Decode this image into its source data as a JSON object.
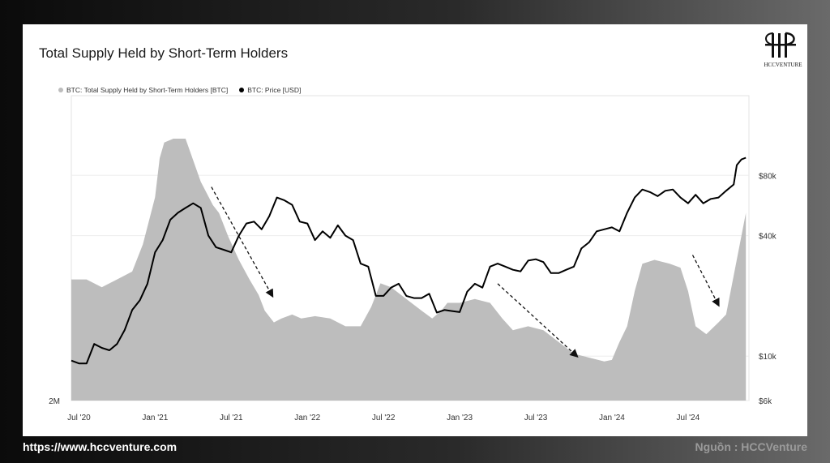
{
  "chart_data": {
    "type": "line",
    "title": "Total Supply Held by Short-Term Holders",
    "legend_position": "top-left",
    "grid": true,
    "series": [
      {
        "name": "BTC: Total Supply Held by Short-Term Holders [BTC]",
        "kind": "area",
        "color": "#bdbdbd",
        "points": [
          [
            2020.45,
            2.55
          ],
          [
            2020.55,
            2.55
          ],
          [
            2020.65,
            2.45
          ],
          [
            2020.75,
            2.55
          ],
          [
            2020.85,
            2.65
          ],
          [
            2020.92,
            3.0
          ],
          [
            2021.0,
            3.6
          ],
          [
            2021.03,
            4.1
          ],
          [
            2021.06,
            4.3
          ],
          [
            2021.12,
            4.35
          ],
          [
            2021.2,
            4.35
          ],
          [
            2021.3,
            3.8
          ],
          [
            2021.38,
            3.5
          ],
          [
            2021.42,
            3.4
          ],
          [
            2021.48,
            3.1
          ],
          [
            2021.55,
            2.8
          ],
          [
            2021.62,
            2.55
          ],
          [
            2021.68,
            2.35
          ],
          [
            2021.72,
            2.15
          ],
          [
            2021.78,
            2.0
          ],
          [
            2021.83,
            2.05
          ],
          [
            2021.9,
            2.1
          ],
          [
            2021.96,
            2.05
          ],
          [
            2022.05,
            2.08
          ],
          [
            2022.15,
            2.05
          ],
          [
            2022.25,
            1.95
          ],
          [
            2022.35,
            1.95
          ],
          [
            2022.42,
            2.2
          ],
          [
            2022.48,
            2.5
          ],
          [
            2022.55,
            2.45
          ],
          [
            2022.65,
            2.3
          ],
          [
            2022.75,
            2.15
          ],
          [
            2022.82,
            2.05
          ],
          [
            2022.88,
            2.15
          ],
          [
            2022.92,
            2.25
          ],
          [
            2023.0,
            2.25
          ],
          [
            2023.1,
            2.3
          ],
          [
            2023.2,
            2.25
          ],
          [
            2023.28,
            2.05
          ],
          [
            2023.35,
            1.9
          ],
          [
            2023.45,
            1.95
          ],
          [
            2023.55,
            1.9
          ],
          [
            2023.65,
            1.75
          ],
          [
            2023.75,
            1.6
          ],
          [
            2023.85,
            1.55
          ],
          [
            2023.95,
            1.5
          ],
          [
            2024.0,
            1.52
          ],
          [
            2024.05,
            1.75
          ],
          [
            2024.1,
            1.95
          ],
          [
            2024.15,
            2.4
          ],
          [
            2024.2,
            2.75
          ],
          [
            2024.28,
            2.8
          ],
          [
            2024.38,
            2.75
          ],
          [
            2024.45,
            2.7
          ],
          [
            2024.5,
            2.4
          ],
          [
            2024.55,
            1.95
          ],
          [
            2024.62,
            1.85
          ],
          [
            2024.7,
            2.0
          ],
          [
            2024.75,
            2.1
          ],
          [
            2024.8,
            2.6
          ],
          [
            2024.85,
            3.1
          ],
          [
            2024.88,
            3.4
          ]
        ]
      },
      {
        "name": "BTC: Price [USD]",
        "kind": "line",
        "color": "#000000",
        "points": [
          [
            2020.45,
            9500
          ],
          [
            2020.5,
            9200
          ],
          [
            2020.55,
            9200
          ],
          [
            2020.6,
            11500
          ],
          [
            2020.65,
            11000
          ],
          [
            2020.7,
            10700
          ],
          [
            2020.75,
            11500
          ],
          [
            2020.8,
            13500
          ],
          [
            2020.85,
            17000
          ],
          [
            2020.9,
            19000
          ],
          [
            2020.95,
            23000
          ],
          [
            2021.0,
            33000
          ],
          [
            2021.05,
            38000
          ],
          [
            2021.1,
            48000
          ],
          [
            2021.15,
            52000
          ],
          [
            2021.2,
            55000
          ],
          [
            2021.25,
            58000
          ],
          [
            2021.3,
            55000
          ],
          [
            2021.35,
            40000
          ],
          [
            2021.4,
            35000
          ],
          [
            2021.45,
            34000
          ],
          [
            2021.5,
            33000
          ],
          [
            2021.55,
            40000
          ],
          [
            2021.6,
            46000
          ],
          [
            2021.65,
            47000
          ],
          [
            2021.7,
            43000
          ],
          [
            2021.75,
            50000
          ],
          [
            2021.8,
            62000
          ],
          [
            2021.85,
            60000
          ],
          [
            2021.9,
            57000
          ],
          [
            2021.95,
            47000
          ],
          [
            2022.0,
            46000
          ],
          [
            2022.05,
            38000
          ],
          [
            2022.1,
            42000
          ],
          [
            2022.15,
            39000
          ],
          [
            2022.2,
            45000
          ],
          [
            2022.25,
            40000
          ],
          [
            2022.3,
            38000
          ],
          [
            2022.35,
            29000
          ],
          [
            2022.4,
            28000
          ],
          [
            2022.45,
            20000
          ],
          [
            2022.5,
            20000
          ],
          [
            2022.55,
            22000
          ],
          [
            2022.6,
            23000
          ],
          [
            2022.65,
            20000
          ],
          [
            2022.7,
            19500
          ],
          [
            2022.75,
            19500
          ],
          [
            2022.8,
            20500
          ],
          [
            2022.85,
            16500
          ],
          [
            2022.9,
            17000
          ],
          [
            2022.95,
            16800
          ],
          [
            2023.0,
            16600
          ],
          [
            2023.05,
            21000
          ],
          [
            2023.1,
            23000
          ],
          [
            2023.15,
            22000
          ],
          [
            2023.2,
            28000
          ],
          [
            2023.25,
            29000
          ],
          [
            2023.3,
            28000
          ],
          [
            2023.35,
            27000
          ],
          [
            2023.4,
            26500
          ],
          [
            2023.45,
            30000
          ],
          [
            2023.5,
            30500
          ],
          [
            2023.55,
            29500
          ],
          [
            2023.6,
            26000
          ],
          [
            2023.65,
            26000
          ],
          [
            2023.7,
            27000
          ],
          [
            2023.75,
            28000
          ],
          [
            2023.8,
            34500
          ],
          [
            2023.85,
            37000
          ],
          [
            2023.9,
            42000
          ],
          [
            2023.95,
            43000
          ],
          [
            2024.0,
            44000
          ],
          [
            2024.05,
            42000
          ],
          [
            2024.1,
            52000
          ],
          [
            2024.15,
            62000
          ],
          [
            2024.2,
            68000
          ],
          [
            2024.25,
            66000
          ],
          [
            2024.3,
            63000
          ],
          [
            2024.35,
            67000
          ],
          [
            2024.4,
            68000
          ],
          [
            2024.45,
            62000
          ],
          [
            2024.5,
            58000
          ],
          [
            2024.55,
            64000
          ],
          [
            2024.6,
            58000
          ],
          [
            2024.65,
            61000
          ],
          [
            2024.7,
            62000
          ],
          [
            2024.75,
            67000
          ],
          [
            2024.8,
            72000
          ],
          [
            2024.82,
            90000
          ],
          [
            2024.85,
            96000
          ],
          [
            2024.88,
            98000
          ]
        ]
      }
    ],
    "x_ticks": [
      {
        "value": 2020.5,
        "label": "Jul '20"
      },
      {
        "value": 2021.0,
        "label": "Jan '21"
      },
      {
        "value": 2021.5,
        "label": "Jul '21"
      },
      {
        "value": 2022.0,
        "label": "Jan '22"
      },
      {
        "value": 2022.5,
        "label": "Jul '22"
      },
      {
        "value": 2023.0,
        "label": "Jan '23"
      },
      {
        "value": 2023.5,
        "label": "Jul '23"
      },
      {
        "value": 2024.0,
        "label": "Jan '24"
      },
      {
        "value": 2024.5,
        "label": "Jul '24"
      }
    ],
    "xlim": [
      2020.45,
      2024.9
    ],
    "left_axis": {
      "ylim": [
        1.0,
        4.9
      ],
      "ticks": [
        {
          "value": 1.0,
          "label": "2M"
        }
      ]
    },
    "right_axis": {
      "scale": "log",
      "ylim": [
        6000,
        200000
      ],
      "ticks": [
        {
          "value": 6000,
          "label": "$6k"
        },
        {
          "value": 10000,
          "label": "$10k"
        },
        {
          "value": 40000,
          "label": "$40k"
        },
        {
          "value": 80000,
          "label": "$80k"
        }
      ]
    },
    "arrows": [
      {
        "from": [
          2021.37,
          70000
        ],
        "to": [
          2021.77,
          20000
        ]
      },
      {
        "from": [
          2023.25,
          23000
        ],
        "to": [
          2023.77,
          10000
        ]
      },
      {
        "from": [
          2024.53,
          32000
        ],
        "to": [
          2024.7,
          18000
        ]
      }
    ]
  },
  "logo": {
    "text": "HCCVENTURE"
  },
  "footer": {
    "website": "https://www.hccventure.com",
    "source": "Nguồn : HCCVenture"
  }
}
